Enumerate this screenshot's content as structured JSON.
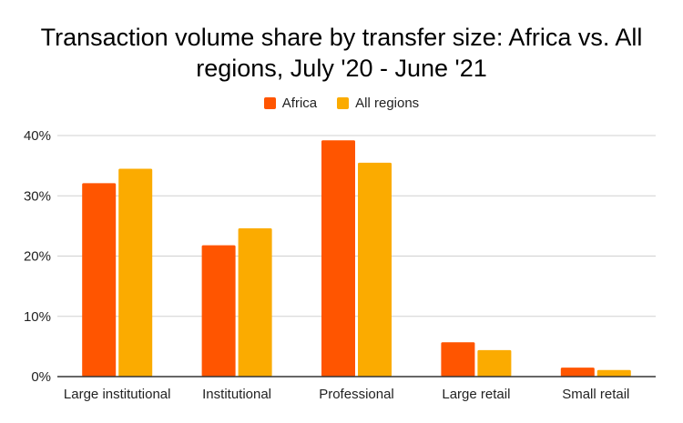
{
  "chart_data": {
    "type": "bar",
    "title": "Transaction volume share by transfer size: Africa vs. All regions, July '20 - June '21",
    "title_lines": [
      "Transaction volume share by transfer size: Africa vs. All",
      "regions, July '20 - June '21"
    ],
    "categories": [
      "Large institutional",
      "Institutional",
      "Professional",
      "Large retail",
      "Small retail"
    ],
    "series": [
      {
        "name": "Africa",
        "color": "#ff5500",
        "values": [
          32.1,
          21.8,
          39.2,
          5.7,
          1.5
        ]
      },
      {
        "name": "All regions",
        "color": "#fbab00",
        "values": [
          34.5,
          24.6,
          35.5,
          4.4,
          1.1
        ]
      }
    ],
    "xlabel": "",
    "ylabel": "",
    "ylim": [
      0,
      40
    ],
    "yticks": [
      "0%",
      "10%",
      "20%",
      "30%",
      "40%"
    ],
    "grid": true,
    "legend": "top"
  }
}
